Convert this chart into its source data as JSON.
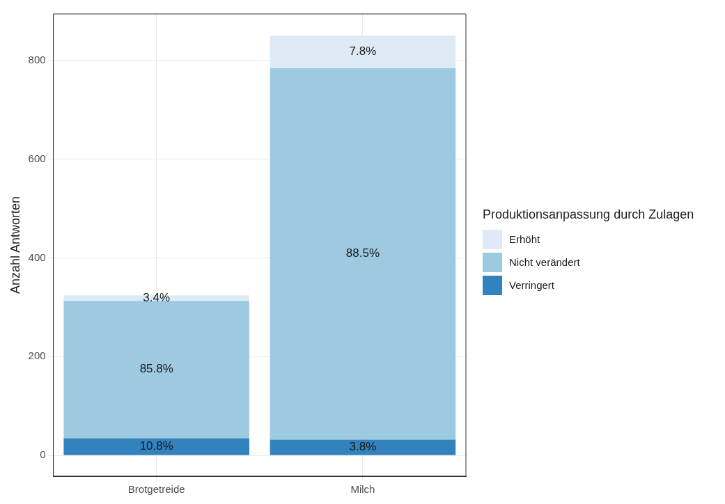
{
  "chart_data": {
    "type": "bar",
    "stacked": true,
    "ylabel": "Anzahl Antworten",
    "legend_title": "Produktionsanpassung durch Zulagen",
    "legend": "right",
    "grid": true,
    "categories": [
      "Brotgetreide",
      "Milch"
    ],
    "series": [
      {
        "name": "Verringert",
        "color": "#3182bd",
        "values": [
          35,
          32
        ]
      },
      {
        "name": "Nicht verändert",
        "color": "#9ecae1",
        "values": [
          278,
          752
        ]
      },
      {
        "name": "Erhöht",
        "color": "#deebf7",
        "values": [
          11,
          66
        ]
      }
    ],
    "annotations": [
      "10.8%",
      "85.8%",
      "3.4%",
      "3.8%",
      "88.5%",
      "7.8%"
    ],
    "ylim": [
      -42,
      894
    ],
    "yticks": [
      0,
      200,
      400,
      600,
      800
    ]
  }
}
